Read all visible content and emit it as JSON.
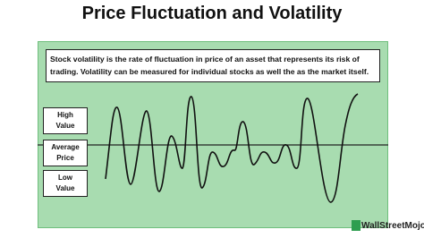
{
  "header": {
    "title": "Price Fluctuation and Volatility"
  },
  "description": {
    "lines": [
      "Stock volatility is the rate of fluctuation in price of an asset that represents its risk of",
      "trading. Volatility can be measured for individual stocks as well the as the market itself."
    ]
  },
  "labels": [
    {
      "lines": [
        "High",
        "Value"
      ]
    },
    {
      "lines": [
        "Average",
        "Price"
      ]
    },
    {
      "lines": [
        "Low",
        "Value"
      ]
    }
  ],
  "logo": {
    "text": "WallStreetMojo"
  }
}
